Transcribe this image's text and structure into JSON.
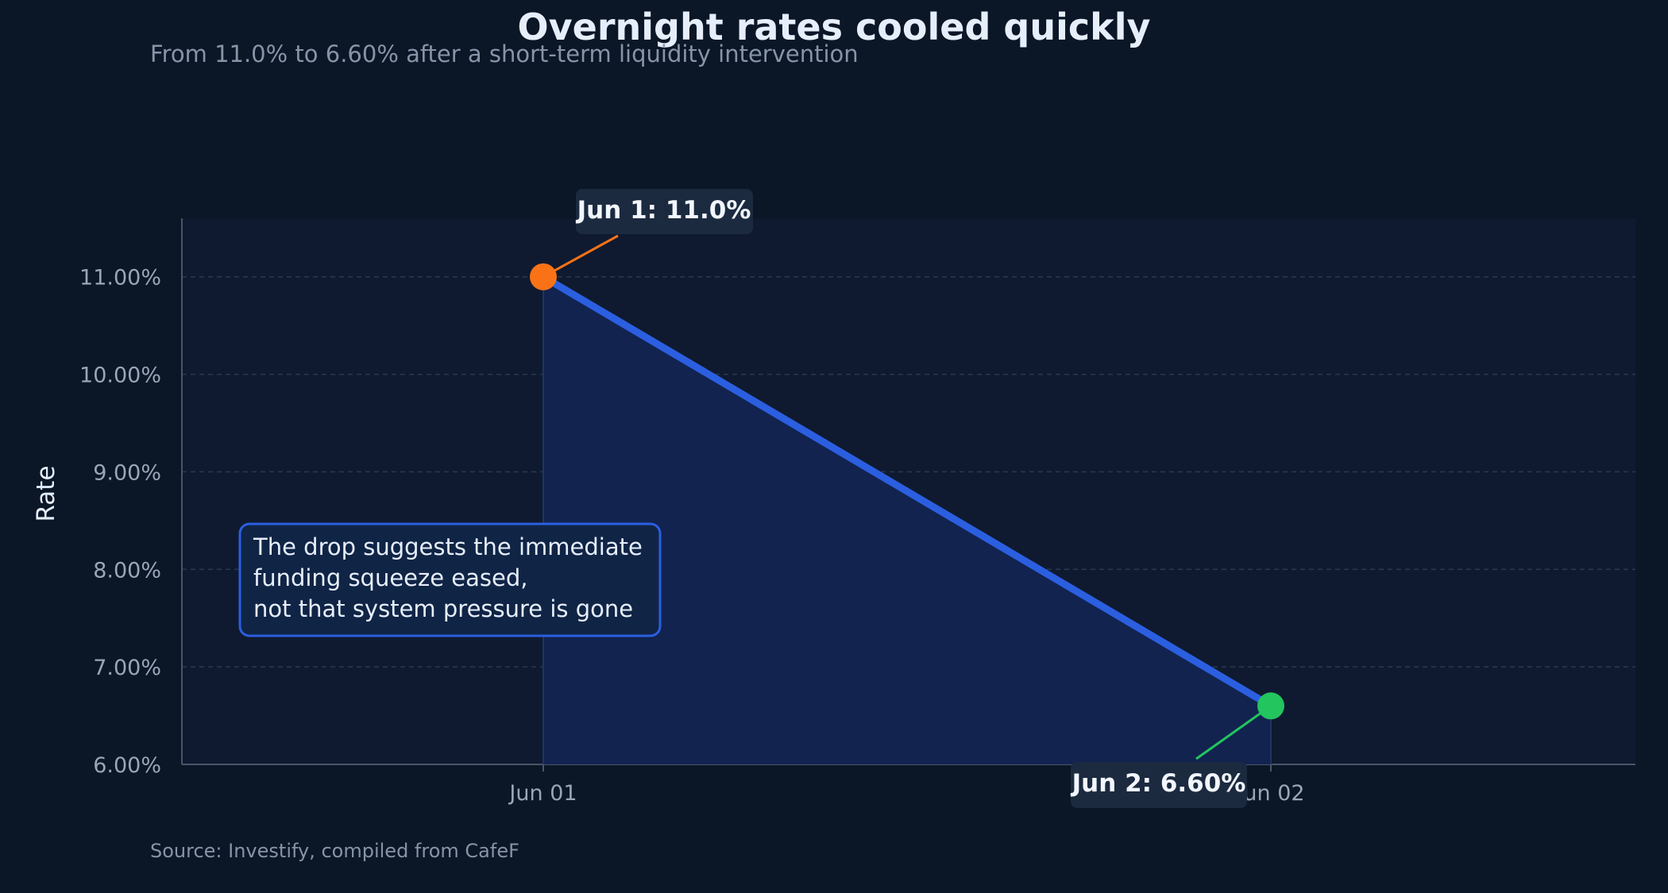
{
  "chart_data": {
    "type": "line",
    "title": "Overnight rates cooled quickly",
    "subtitle": "From 11.0% to 6.60% after a short-term liquidity intervention",
    "xlabel": "",
    "ylabel": "Rate",
    "categories": [
      "Jun 01",
      "Jun 02"
    ],
    "series": [
      {
        "values": [
          11.0,
          6.6
        ]
      }
    ],
    "ylim": [
      6.0,
      11.6
    ],
    "y_ticks": [
      6,
      7,
      8,
      9,
      10,
      11
    ],
    "y_tick_labels": [
      "6.00%",
      "7.00%",
      "8.00%",
      "9.00%",
      "10.00%",
      "11.00%"
    ],
    "grid": true,
    "area_fill": true,
    "annotations": {
      "start": "Jun 1: 11.0%",
      "end": "Jun 2: 6.60%",
      "note_lines": [
        "The drop suggests the immediate",
        "funding squeeze eased,",
        "not that system pressure is gone"
      ]
    },
    "source": "Source: Investify, compiled from CafeF",
    "colors": {
      "line": "#2b5fe0",
      "area": "#132452",
      "start_marker": "#f97316",
      "end_marker": "#22c55e",
      "note_border": "#2b5fe0"
    }
  }
}
